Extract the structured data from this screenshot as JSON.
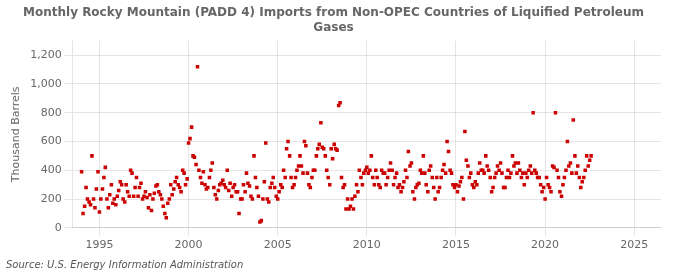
{
  "chart_data": {
    "type": "scatter",
    "title": "Monthly Rocky Mountain (PADD 4) Imports from Non-OPEC Countries of Liquified Petroleum\nGases",
    "ylabel": "Thousand Barrels",
    "source": "Source: U.S. Energy Information Administration",
    "xlim": [
      1993.5,
      2026.5
    ],
    "xticks": [
      1995,
      2000,
      2005,
      2010,
      2015,
      2020,
      2025
    ],
    "ylim": [
      0,
      1300
    ],
    "yticks": [
      0,
      200,
      400,
      600,
      800,
      {
        "value": 1000,
        "label": "1,000"
      },
      {
        "value": 1200,
        "label": "1,200"
      }
    ],
    "grid": true,
    "color": "#cc0000",
    "marker": "square",
    "x": [
      1994.0,
      1994.08,
      1994.17,
      1994.25,
      1994.33,
      1994.42,
      1994.5,
      1994.58,
      1994.67,
      1994.75,
      1994.83,
      1994.92,
      1995.0,
      1995.08,
      1995.17,
      1995.25,
      1995.33,
      1995.42,
      1995.5,
      1995.58,
      1995.67,
      1995.75,
      1995.83,
      1995.92,
      1996.0,
      1996.08,
      1996.17,
      1996.25,
      1996.33,
      1996.42,
      1996.5,
      1996.58,
      1996.67,
      1996.75,
      1996.83,
      1996.92,
      1997.0,
      1997.08,
      1997.17,
      1997.25,
      1997.33,
      1997.42,
      1997.5,
      1997.58,
      1997.67,
      1997.75,
      1997.83,
      1997.92,
      1998.0,
      1998.08,
      1998.17,
      1998.25,
      1998.33,
      1998.42,
      1998.5,
      1998.58,
      1998.67,
      1998.75,
      1998.83,
      1998.92,
      1999.0,
      1999.08,
      1999.17,
      1999.25,
      1999.33,
      1999.42,
      1999.5,
      1999.58,
      1999.67,
      1999.75,
      1999.83,
      1999.92,
      2000.0,
      2000.08,
      2000.17,
      2000.25,
      2000.33,
      2000.42,
      2000.5,
      2000.58,
      2000.67,
      2000.75,
      2000.83,
      2000.92,
      2001.0,
      2001.08,
      2001.17,
      2001.25,
      2001.33,
      2001.42,
      2001.5,
      2001.58,
      2001.67,
      2001.75,
      2001.83,
      2001.92,
      2002.0,
      2002.08,
      2002.17,
      2002.25,
      2002.33,
      2002.42,
      2002.5,
      2002.58,
      2002.67,
      2002.75,
      2002.83,
      2002.92,
      2003.0,
      2003.08,
      2003.17,
      2003.25,
      2003.33,
      2003.42,
      2003.5,
      2003.58,
      2003.67,
      2003.75,
      2003.83,
      2003.92,
      2004.0,
      2004.08,
      2004.17,
      2004.25,
      2004.33,
      2004.42,
      2004.5,
      2004.58,
      2004.67,
      2004.75,
      2004.83,
      2004.92,
      2005.0,
      2005.08,
      2005.17,
      2005.25,
      2005.33,
      2005.42,
      2005.5,
      2005.58,
      2005.67,
      2005.75,
      2005.83,
      2005.92,
      2006.0,
      2006.08,
      2006.17,
      2006.25,
      2006.33,
      2006.42,
      2006.5,
      2006.58,
      2006.67,
      2006.75,
      2006.83,
      2006.92,
      2007.0,
      2007.08,
      2007.17,
      2007.25,
      2007.33,
      2007.42,
      2007.5,
      2007.58,
      2007.67,
      2007.75,
      2007.83,
      2007.92,
      2008.0,
      2008.08,
      2008.17,
      2008.25,
      2008.33,
      2008.42,
      2008.5,
      2008.58,
      2008.67,
      2008.75,
      2008.83,
      2008.92,
      2009.0,
      2009.08,
      2009.17,
      2009.25,
      2009.33,
      2009.42,
      2009.5,
      2009.58,
      2009.67,
      2009.75,
      2009.83,
      2009.92,
      2010.0,
      2010.08,
      2010.17,
      2010.25,
      2010.33,
      2010.42,
      2010.5,
      2010.58,
      2010.67,
      2010.75,
      2010.83,
      2010.92,
      2011.0,
      2011.08,
      2011.17,
      2011.25,
      2011.33,
      2011.42,
      2011.5,
      2011.58,
      2011.67,
      2011.75,
      2011.83,
      2011.92,
      2012.0,
      2012.08,
      2012.17,
      2012.25,
      2012.33,
      2012.42,
      2012.5,
      2012.58,
      2012.67,
      2012.75,
      2012.83,
      2012.92,
      2013.0,
      2013.08,
      2013.17,
      2013.25,
      2013.33,
      2013.42,
      2013.5,
      2013.58,
      2013.67,
      2013.75,
      2013.83,
      2013.92,
      2014.0,
      2014.08,
      2014.17,
      2014.25,
      2014.33,
      2014.42,
      2014.5,
      2014.58,
      2014.67,
      2014.75,
      2014.83,
      2014.92,
      2015.0,
      2015.08,
      2015.17,
      2015.25,
      2015.33,
      2015.42,
      2015.5,
      2015.58,
      2015.67,
      2015.75,
      2015.83,
      2015.92,
      2016.0,
      2016.08,
      2016.17,
      2016.25,
      2016.33,
      2016.42,
      2016.5,
      2016.58,
      2016.67,
      2016.75,
      2016.83,
      2016.92,
      2017.0,
      2017.08,
      2017.17,
      2017.25,
      2017.33,
      2017.42,
      2017.5,
      2017.58,
      2017.67,
      2017.75,
      2017.83,
      2017.92,
      2018.0,
      2018.08,
      2018.17,
      2018.25,
      2018.33,
      2018.42,
      2018.5,
      2018.58,
      2018.67,
      2018.75,
      2018.83,
      2018.92,
      2019.0,
      2019.08,
      2019.17,
      2019.25,
      2019.33,
      2019.42,
      2019.5,
      2019.58,
      2019.67,
      2019.75,
      2019.83,
      2019.92,
      2020.0,
      2020.08,
      2020.17,
      2020.25,
      2020.33,
      2020.42,
      2020.5,
      2020.58,
      2020.67,
      2020.75,
      2020.83,
      2020.92,
      2021.0,
      2021.08,
      2021.17,
      2021.25,
      2021.33,
      2021.42,
      2021.5,
      2021.58,
      2021.67,
      2021.75,
      2021.83,
      2021.92,
      2022.0,
      2022.08,
      2022.17,
      2022.25,
      2022.33,
      2022.42,
      2022.5,
      2022.58
    ],
    "values": [
      390,
      100,
      150,
      280,
      200,
      180,
      160,
      500,
      200,
      140,
      270,
      390,
      110,
      200,
      270,
      350,
      420,
      200,
      140,
      230,
      300,
      170,
      200,
      160,
      220,
      260,
      320,
      300,
      200,
      180,
      300,
      250,
      220,
      400,
      380,
      220,
      280,
      350,
      220,
      280,
      310,
      200,
      220,
      250,
      210,
      140,
      230,
      120,
      200,
      240,
      290,
      300,
      250,
      230,
      200,
      150,
      100,
      70,
      170,
      200,
      300,
      230,
      270,
      320,
      350,
      300,
      280,
      250,
      400,
      380,
      300,
      340,
      590,
      620,
      700,
      500,
      490,
      440,
      1120,
      400,
      350,
      310,
      390,
      300,
      270,
      280,
      350,
      400,
      450,
      280,
      230,
      200,
      260,
      300,
      310,
      330,
      300,
      280,
      400,
      260,
      310,
      220,
      280,
      300,
      250,
      250,
      100,
      200,
      200,
      300,
      250,
      380,
      310,
      290,
      220,
      200,
      500,
      350,
      280,
      220,
      40,
      50,
      200,
      320,
      590,
      200,
      180,
      280,
      310,
      350,
      280,
      220,
      200,
      250,
      300,
      280,
      400,
      350,
      550,
      600,
      500,
      350,
      280,
      300,
      350,
      400,
      430,
      500,
      430,
      380,
      600,
      570,
      380,
      300,
      280,
      350,
      400,
      400,
      500,
      550,
      580,
      730,
      560,
      550,
      500,
      400,
      350,
      300,
      550,
      480,
      580,
      550,
      540,
      850,
      870,
      350,
      280,
      300,
      130,
      200,
      130,
      150,
      200,
      130,
      220,
      300,
      250,
      400,
      350,
      300,
      380,
      400,
      420,
      380,
      400,
      500,
      350,
      300,
      400,
      350,
      300,
      280,
      400,
      380,
      380,
      300,
      350,
      400,
      450,
      400,
      300,
      350,
      380,
      280,
      300,
      250,
      280,
      320,
      400,
      350,
      530,
      430,
      450,
      250,
      200,
      280,
      300,
      310,
      400,
      380,
      500,
      380,
      300,
      250,
      400,
      430,
      350,
      280,
      200,
      350,
      250,
      280,
      350,
      400,
      440,
      380,
      600,
      530,
      400,
      380,
      300,
      280,
      300,
      250,
      290,
      320,
      350,
      200,
      670,
      470,
      430,
      350,
      380,
      300,
      280,
      320,
      300,
      380,
      450,
      400,
      400,
      380,
      500,
      430,
      400,
      350,
      250,
      280,
      350,
      380,
      430,
      400,
      450,
      380,
      280,
      280,
      350,
      400,
      350,
      380,
      500,
      430,
      450,
      380,
      450,
      400,
      350,
      380,
      300,
      380,
      350,
      400,
      430,
      380,
      800,
      400,
      380,
      350,
      350,
      300,
      250,
      280,
      200,
      350,
      300,
      280,
      250,
      430,
      420,
      800,
      400,
      350,
      250,
      220,
      300,
      350,
      400,
      600,
      430,
      450,
      380,
      750,
      500,
      380,
      430,
      350,
      280,
      320,
      350,
      400,
      500,
      430,
      470,
      500
    ]
  }
}
